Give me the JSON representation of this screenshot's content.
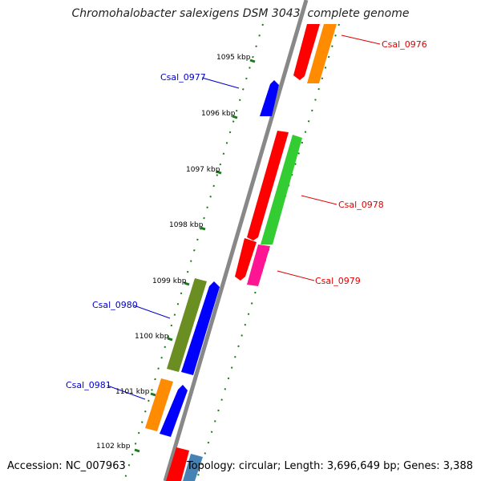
{
  "title": "Chromohalobacter salexigens DSM 3043, complete genome",
  "footer": {
    "accession": "Accession: NC_007963",
    "summary": "Topology: circular; Length: 3,696,649 bp; Genes: 3,388"
  },
  "colors": {
    "backbone": "#888888",
    "tick": "#1a7a1a",
    "label_red": "#e00000",
    "label_blue": "#0000cc"
  },
  "ticks": [
    "1095 kbp",
    "1096 kbp",
    "1097 kbp",
    "1098 kbp",
    "1099 kbp",
    "1100 kbp",
    "1101 kbp",
    "1102 kbp"
  ],
  "gene_labels": [
    {
      "text": "Csal_0976",
      "color": "#e00000"
    },
    {
      "text": "Csal_0977",
      "color": "#0000cc"
    },
    {
      "text": "Csal_0978",
      "color": "#e00000"
    },
    {
      "text": "Csal_0979",
      "color": "#e00000"
    },
    {
      "text": "Csal_0980",
      "color": "#0000cc"
    },
    {
      "text": "Csal_0981",
      "color": "#0000cc"
    }
  ],
  "features": [
    {
      "color": "#ff0000",
      "name": "cds-red"
    },
    {
      "color": "#ff8c00",
      "name": "cds-orange"
    },
    {
      "color": "#0000ff",
      "name": "cds-blue"
    },
    {
      "color": "#33cc33",
      "name": "cds-green"
    },
    {
      "color": "#ff1493",
      "name": "cds-pink"
    },
    {
      "color": "#6b8e23",
      "name": "cds-olive"
    },
    {
      "color": "#4682b4",
      "name": "cds-steelblue"
    }
  ]
}
